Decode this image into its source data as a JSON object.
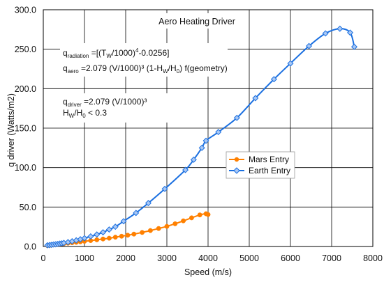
{
  "chart_data": {
    "type": "line",
    "title": "Aero Heating Driver",
    "xlabel": "Speed  (m/s)",
    "ylabel": "q driver    (Watts/m2)",
    "xlim": [
      0,
      8000
    ],
    "ylim": [
      0,
      300
    ],
    "x_ticks": [
      "0",
      "1000",
      "2000",
      "3000",
      "4000",
      "5000",
      "6000",
      "7000",
      "8000"
    ],
    "y_ticks": [
      "0.0",
      "50.0",
      "100.0",
      "150.0",
      "200.0",
      "250.0",
      "300.0"
    ],
    "grid": true,
    "legend_position": "center-right",
    "series": [
      {
        "name": "Mars Entry",
        "color": "#ff8000",
        "marker": "circle",
        "x": [
          100,
          150,
          200,
          250,
          300,
          350,
          400,
          450,
          500,
          600,
          700,
          800,
          900,
          1000,
          1150,
          1300,
          1450,
          1600,
          1750,
          1900,
          2050,
          2200,
          2400,
          2600,
          2800,
          3000,
          3200,
          3400,
          3600,
          3800,
          3950,
          4000
        ],
        "y": [
          1.2,
          1.5,
          1.8,
          2.1,
          2.4,
          2.7,
          3,
          3.3,
          3.6,
          4.2,
          4.8,
          5.3,
          5.9,
          6.6,
          7.5,
          8.5,
          9.5,
          10.5,
          11.8,
          13,
          14.3,
          15.7,
          17.8,
          20.2,
          22.8,
          25.5,
          28.8,
          32.5,
          36.3,
          40,
          41.5,
          40.5
        ]
      },
      {
        "name": "Earth Entry",
        "color": "#1a6fe0",
        "marker": "diamond",
        "x": [
          100,
          150,
          200,
          250,
          300,
          350,
          400,
          450,
          500,
          600,
          700,
          800,
          900,
          1000,
          1150,
          1300,
          1450,
          1600,
          1750,
          1950,
          2250,
          2550,
          2950,
          3450,
          3650,
          3850,
          3950,
          4250,
          4700,
          5150,
          5600,
          6000,
          6450,
          6850,
          7200,
          7450,
          7550
        ],
        "y": [
          1.5,
          1.8,
          2.1,
          2.5,
          2.8,
          3.2,
          3.6,
          4,
          4.5,
          5.5,
          6.6,
          7.8,
          9.1,
          10.5,
          12.8,
          15.2,
          18,
          21.5,
          25,
          32,
          42.5,
          55,
          73,
          97,
          110,
          125,
          134,
          145,
          163,
          188,
          212,
          232,
          254,
          270,
          276,
          271,
          253
        ]
      }
    ],
    "annotations": [
      "q_radiation =[(T_W/1000)^4-0.0256]",
      "q_aero =2.079 (V/1000)^3 (1-H_W/H_0) f(geometry)",
      "q_driver =2.079 (V/1000)^3",
      "H_W/H_0 < 0.3"
    ]
  }
}
